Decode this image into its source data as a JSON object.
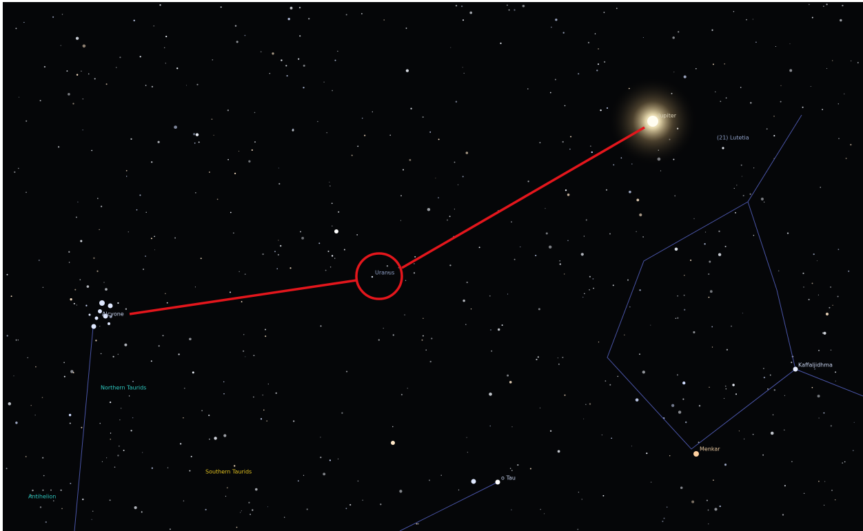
{
  "labels": {
    "jupiter": "Jupiter",
    "lutetia": "(21) Lutetia",
    "uranus": "Uranus",
    "alcyone": "Alcyone",
    "northern_taurids": "Northern Taurids",
    "southern_taurids": "Southern Taurids",
    "antihelion": "Antihelion",
    "kaffaljidhma": "Kaffaljidhma",
    "menkar": "Menkar",
    "o_tau": "o Tau"
  }
}
